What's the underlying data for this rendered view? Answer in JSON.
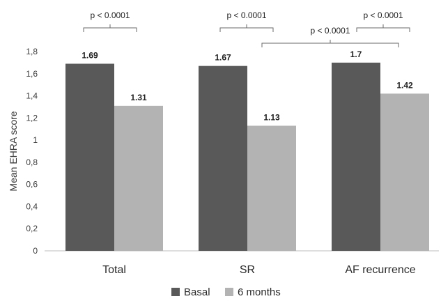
{
  "chart_data": {
    "type": "bar",
    "categories": [
      "Total",
      "SR",
      "AF recurrence"
    ],
    "series": [
      {
        "name": "Basal",
        "values": [
          1.69,
          1.67,
          1.7
        ],
        "color": "#595959"
      },
      {
        "name": "6 months",
        "values": [
          1.31,
          1.13,
          1.42
        ],
        "color": "#b3b3b3"
      }
    ],
    "data_labels": [
      [
        "1.69",
        "1.67",
        "1.7"
      ],
      [
        "1.31",
        "1.13",
        "1.42"
      ]
    ],
    "ylabel": "Mean EHRA score",
    "xlabel": "",
    "ylim": [
      0,
      1.8
    ],
    "yticks": [
      "0",
      "0,2",
      "0,4",
      "0,6",
      "0,8",
      "1",
      "1,2",
      "1,4",
      "1,6",
      "1,8"
    ],
    "grid": false,
    "legend": "bottom",
    "annotations": [
      {
        "text": "p < 0.0001",
        "between": "Total: Basal vs 6 months"
      },
      {
        "text": "p < 0.0001",
        "between": "SR: Basal vs 6 months"
      },
      {
        "text": "p < 0.0001",
        "between": "AF recurrence: Basal vs 6 months"
      },
      {
        "text": "p < 0.0001",
        "between": "SR 6 months vs AF recurrence 6 months"
      }
    ]
  }
}
